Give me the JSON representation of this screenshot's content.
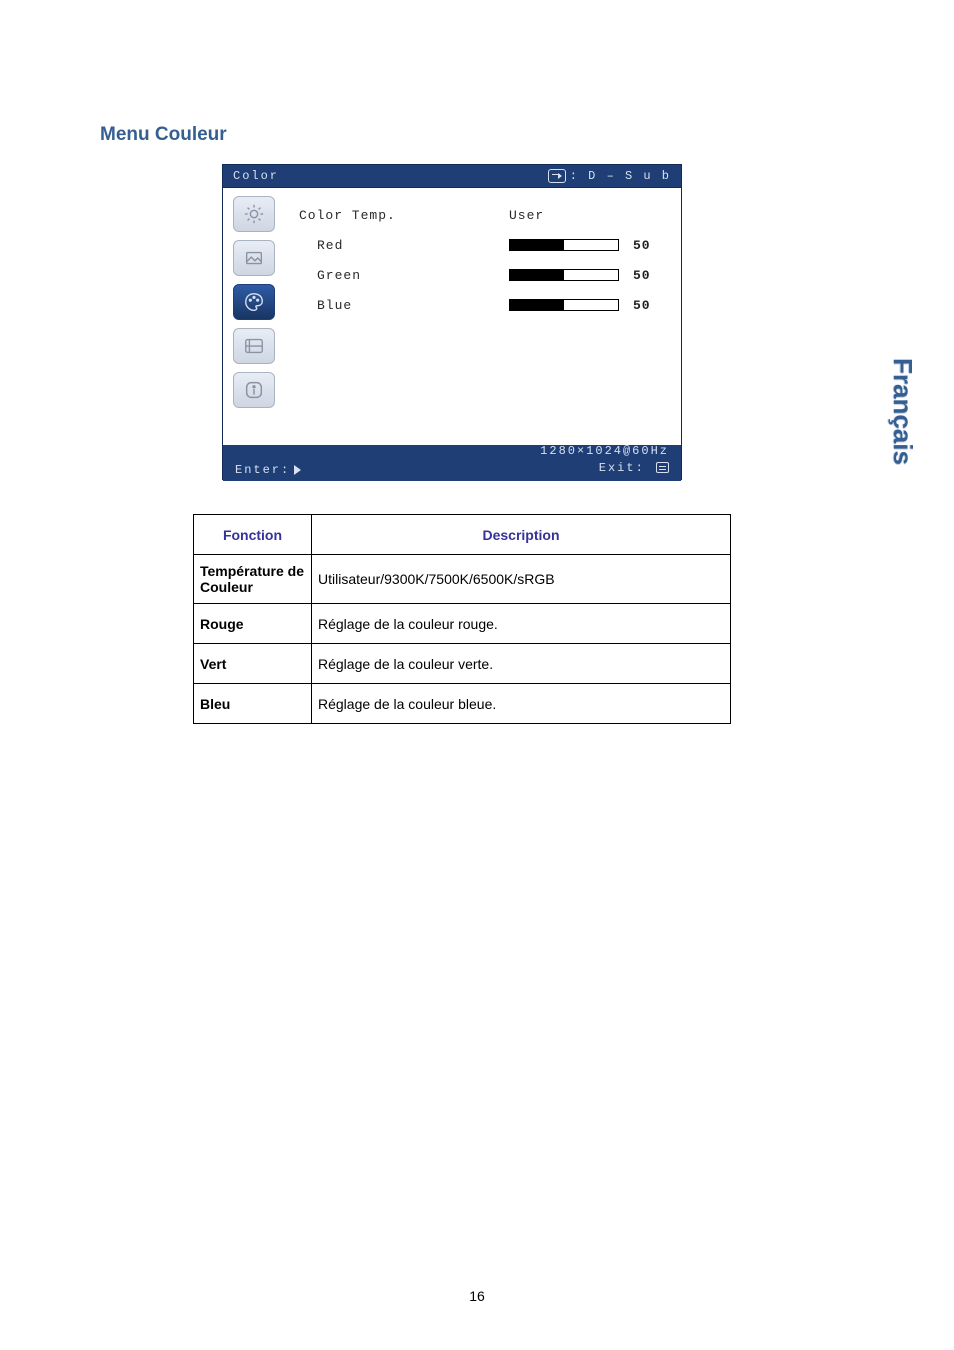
{
  "title": "Menu Couleur",
  "sideTab": "Français",
  "pageNumber": "16",
  "osd": {
    "title": "Color",
    "inputLabel": ": D – S u b",
    "colorTemp": {
      "label": "Color Temp.",
      "value": "User"
    },
    "sliders": {
      "red": {
        "label": "Red",
        "value": 50,
        "max": 100
      },
      "green": {
        "label": "Green",
        "value": 50,
        "max": 100
      },
      "blue": {
        "label": "Blue",
        "value": 50,
        "max": 100
      }
    },
    "resolution": "1280×1024@60Hz",
    "enterLabel": "Enter:",
    "exitLabel": "Exit:",
    "iconActiveIndex": 2
  },
  "table": {
    "headers": {
      "function": "Fonction",
      "description": "Description"
    },
    "rows": [
      {
        "fn": "Température de Couleur",
        "desc": "Utilisateur/9300K/7500K/6500K/sRGB"
      },
      {
        "fn": "Rouge",
        "desc": "Réglage de la couleur rouge."
      },
      {
        "fn": "Vert",
        "desc": "Réglage de la couleur verte."
      },
      {
        "fn": "Bleu",
        "desc": "Réglage de la couleur bleue."
      }
    ]
  },
  "colors": {
    "heading": "#365f91",
    "osdBg": "#1e3e75",
    "osdText": "#d8e0f0",
    "tableHeader": "#333399"
  }
}
